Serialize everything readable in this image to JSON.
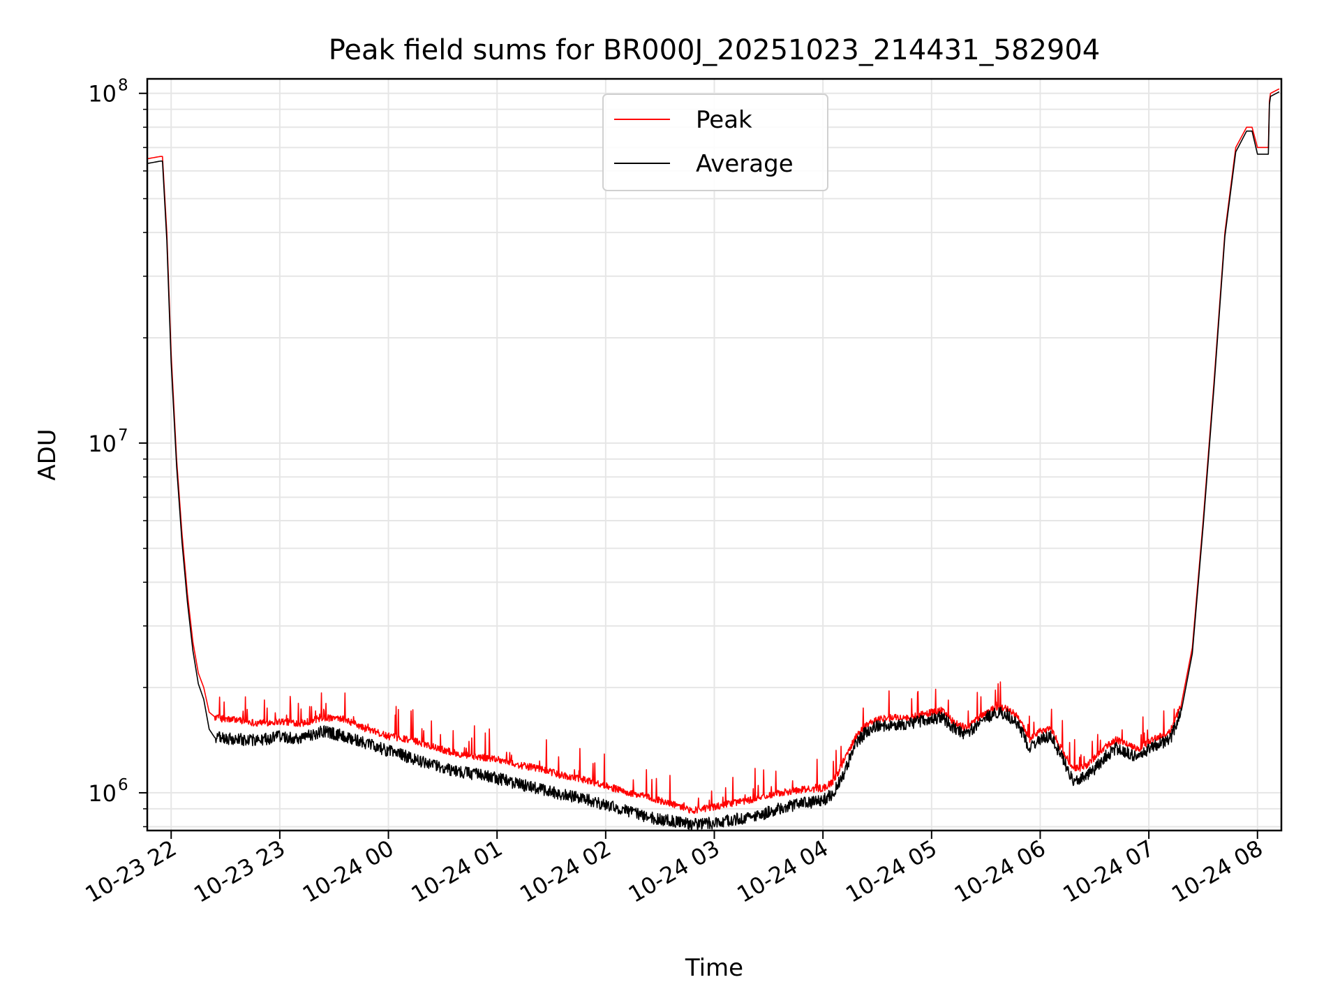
{
  "chart_data": {
    "type": "line",
    "title": "Peak field sums for BR000J_20251023_214431_582904",
    "xlabel": "Time",
    "ylabel": "ADU",
    "yscale": "log",
    "xlim_hours": [
      -0.22,
      10.22
    ],
    "ylim": [
      780000,
      110000000
    ],
    "x_ticks": [
      {
        "hours": 0,
        "label": "10-23 22"
      },
      {
        "hours": 1,
        "label": "10-23 23"
      },
      {
        "hours": 2,
        "label": "10-24 00"
      },
      {
        "hours": 3,
        "label": "10-24 01"
      },
      {
        "hours": 4,
        "label": "10-24 02"
      },
      {
        "hours": 5,
        "label": "10-24 03"
      },
      {
        "hours": 6,
        "label": "10-24 04"
      },
      {
        "hours": 7,
        "label": "10-24 05"
      },
      {
        "hours": 8,
        "label": "10-24 06"
      },
      {
        "hours": 9,
        "label": "10-24 07"
      },
      {
        "hours": 10,
        "label": "10-24 08"
      }
    ],
    "y_ticks": [
      {
        "value": 1000000,
        "label": "10",
        "exp": "6"
      },
      {
        "value": 10000000,
        "label": "10",
        "exp": "7"
      },
      {
        "value": 100000000,
        "label": "10",
        "exp": "8"
      }
    ],
    "grid": true,
    "legend_position": "top-center",
    "series": [
      {
        "name": "Peak",
        "color": "#ff0000",
        "x_hours": [
          -0.22,
          -0.1,
          -0.08,
          -0.04,
          0.0,
          0.05,
          0.1,
          0.15,
          0.2,
          0.25,
          0.3,
          0.35,
          0.4,
          0.5,
          0.6,
          0.7,
          0.8,
          1.0,
          1.2,
          1.4,
          1.6,
          1.8,
          2.0,
          2.2,
          2.4,
          2.6,
          2.8,
          3.0,
          3.2,
          3.4,
          3.6,
          3.8,
          4.0,
          4.2,
          4.4,
          4.6,
          4.8,
          5.0,
          5.2,
          5.4,
          5.6,
          5.8,
          6.0,
          6.1,
          6.2,
          6.3,
          6.4,
          6.5,
          6.6,
          6.8,
          7.0,
          7.1,
          7.2,
          7.3,
          7.4,
          7.5,
          7.6,
          7.7,
          7.8,
          7.9,
          8.0,
          8.1,
          8.2,
          8.3,
          8.4,
          8.5,
          8.6,
          8.7,
          8.8,
          8.9,
          9.0,
          9.1,
          9.2,
          9.3,
          9.4,
          9.5,
          9.6,
          9.7,
          9.8,
          9.9,
          9.95,
          10.0,
          10.02,
          10.1,
          10.11,
          10.12,
          10.2
        ],
        "values": [
          65000000,
          66000000,
          66000000,
          40000000,
          18000000,
          9000000,
          5500000,
          3700000,
          2700000,
          2200000,
          2000000,
          1700000,
          1650000,
          1620000,
          1620000,
          1600000,
          1580000,
          1600000,
          1580000,
          1640000,
          1620000,
          1520000,
          1450000,
          1420000,
          1360000,
          1300000,
          1270000,
          1250000,
          1200000,
          1170000,
          1120000,
          1090000,
          1050000,
          1000000,
          970000,
          930000,
          890000,
          910000,
          940000,
          960000,
          1000000,
          1020000,
          1030000,
          1080000,
          1250000,
          1450000,
          1560000,
          1620000,
          1640000,
          1640000,
          1700000,
          1720000,
          1600000,
          1530000,
          1600000,
          1700000,
          1760000,
          1740000,
          1640000,
          1420000,
          1500000,
          1520000,
          1330000,
          1170000,
          1180000,
          1260000,
          1350000,
          1420000,
          1370000,
          1330000,
          1400000,
          1450000,
          1500000,
          1800000,
          2600000,
          6000000,
          15000000,
          40000000,
          70000000,
          80000000,
          80000000,
          70000000,
          70000000,
          70000000,
          95000000,
          100000000,
          103000000
        ]
      },
      {
        "name": "Average",
        "color": "#000000",
        "x_hours": [
          -0.22,
          -0.1,
          -0.08,
          -0.04,
          0.0,
          0.05,
          0.1,
          0.15,
          0.2,
          0.25,
          0.3,
          0.35,
          0.4,
          0.5,
          0.6,
          0.7,
          0.8,
          1.0,
          1.2,
          1.4,
          1.6,
          1.8,
          2.0,
          2.2,
          2.4,
          2.6,
          2.8,
          3.0,
          3.2,
          3.4,
          3.6,
          3.8,
          4.0,
          4.2,
          4.4,
          4.6,
          4.8,
          5.0,
          5.2,
          5.4,
          5.6,
          5.8,
          6.0,
          6.1,
          6.2,
          6.3,
          6.4,
          6.5,
          6.6,
          6.8,
          7.0,
          7.1,
          7.2,
          7.3,
          7.4,
          7.5,
          7.6,
          7.7,
          7.8,
          7.9,
          8.0,
          8.1,
          8.2,
          8.3,
          8.4,
          8.5,
          8.6,
          8.7,
          8.8,
          8.9,
          9.0,
          9.1,
          9.2,
          9.3,
          9.4,
          9.5,
          9.6,
          9.7,
          9.8,
          9.9,
          9.95,
          10.0,
          10.02,
          10.1,
          10.11,
          10.12,
          10.2
        ],
        "values": [
          63000000,
          64000000,
          64000000,
          38000000,
          17000000,
          8600000,
          5200000,
          3500000,
          2550000,
          2050000,
          1850000,
          1520000,
          1440000,
          1430000,
          1420000,
          1420000,
          1410000,
          1450000,
          1430000,
          1500000,
          1450000,
          1380000,
          1320000,
          1260000,
          1200000,
          1160000,
          1130000,
          1100000,
          1060000,
          1020000,
          990000,
          960000,
          920000,
          890000,
          850000,
          830000,
          810000,
          820000,
          840000,
          860000,
          900000,
          930000,
          950000,
          1000000,
          1150000,
          1380000,
          1500000,
          1560000,
          1560000,
          1580000,
          1630000,
          1650000,
          1530000,
          1470000,
          1540000,
          1640000,
          1700000,
          1670000,
          1570000,
          1340000,
          1430000,
          1450000,
          1260000,
          1090000,
          1100000,
          1170000,
          1270000,
          1340000,
          1300000,
          1260000,
          1330000,
          1380000,
          1430000,
          1720000,
          2500000,
          5800000,
          14500000,
          39000000,
          68000000,
          78000000,
          78000000,
          67000000,
          67000000,
          67000000,
          93000000,
          98000000,
          101000000
        ]
      }
    ]
  }
}
